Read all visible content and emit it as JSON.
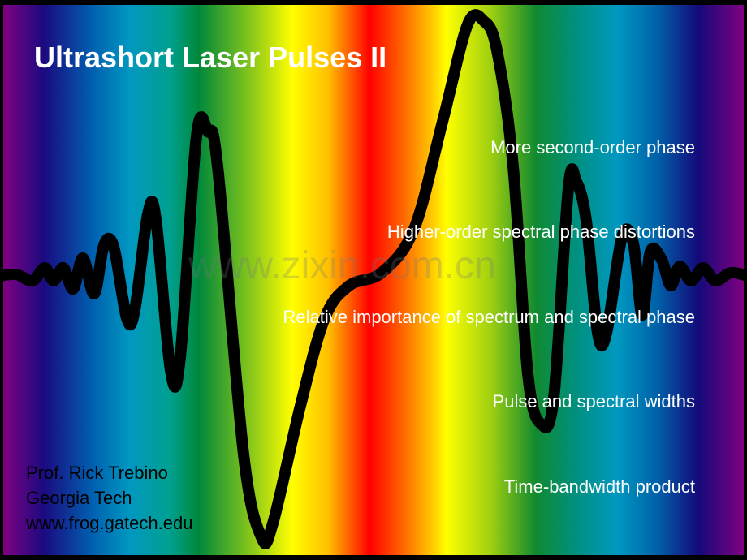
{
  "slide": {
    "title": "Ultrashort Laser Pulses II",
    "topics": [
      "More second-order phase",
      "Higher-order spectral phase distortions",
      "Relative importance of spectrum and spectral phase",
      "Pulse and spectral widths",
      "Time-bandwidth product"
    ],
    "author": {
      "name": "Prof. Rick Trebino",
      "institution": "Georgia Tech",
      "website": "www.frog.gatech.edu"
    },
    "watermark": "www.zixin.com.cn",
    "colors": {
      "title": "#ffffff",
      "topics": "#ffffff",
      "credit": "#000000",
      "wave": "#000000"
    },
    "background": "rainbow spectrum gradient with black pulse waveform"
  }
}
